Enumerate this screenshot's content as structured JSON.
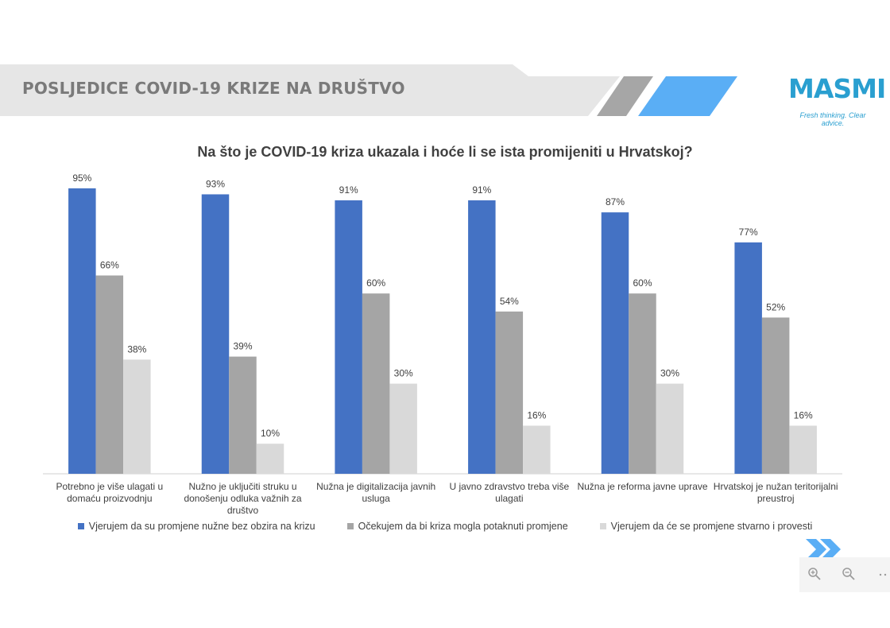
{
  "header": {
    "title": "POSLJEDICE COVID-19 KRIZE NA DRUŠTVO",
    "logo_text": "MASMI",
    "logo_tagline": "Fresh thinking. Clear advice."
  },
  "colors": {
    "series1": "#4472c4",
    "series2": "#a5a5a5",
    "series3": "#d9d9d9",
    "accent": "#5aaef5",
    "header_grey": "#e6e6e6",
    "logo": "#2a9fd0"
  },
  "chart_data": {
    "type": "bar",
    "title": "Na što je COVID-19 kriza ukazala i hoće li se ista promijeniti u Hrvatskoj?",
    "categories": [
      [
        "Potrebno je više ulagati u",
        "domaću proizvodnju"
      ],
      [
        "Nužno je uključiti  struku u",
        "donošenju odluka važnih za",
        "društvo"
      ],
      [
        "Nužna je digitalizacija javnih",
        "usluga"
      ],
      [
        "U javno zdravstvo treba više",
        "ulagati"
      ],
      [
        "Nužna je reforma javne uprave"
      ],
      [
        "Hrvatskoj je nužan teritorijalni",
        "preustroj"
      ]
    ],
    "series": [
      {
        "name": "Vjerujem da su promjene nužne bez obzira na krizu",
        "values": [
          95,
          93,
          91,
          91,
          87,
          77
        ]
      },
      {
        "name": "Očekujem da bi kriza mogla potaknuti promjene",
        "values": [
          66,
          39,
          60,
          54,
          60,
          52
        ]
      },
      {
        "name": "Vjerujem da će se promjene stvarno i provesti",
        "values": [
          38,
          10,
          30,
          16,
          30,
          16
        ]
      }
    ],
    "value_suffix": "%",
    "ylim": [
      0,
      100
    ],
    "grid": false,
    "legend_position": "bottom"
  },
  "viewer": {
    "zoom_in_icon": "zoom-in-icon",
    "zoom_out_icon": "zoom-out-icon",
    "more_icon": "more-icon",
    "next_icon": "double-chevron-right-icon"
  }
}
